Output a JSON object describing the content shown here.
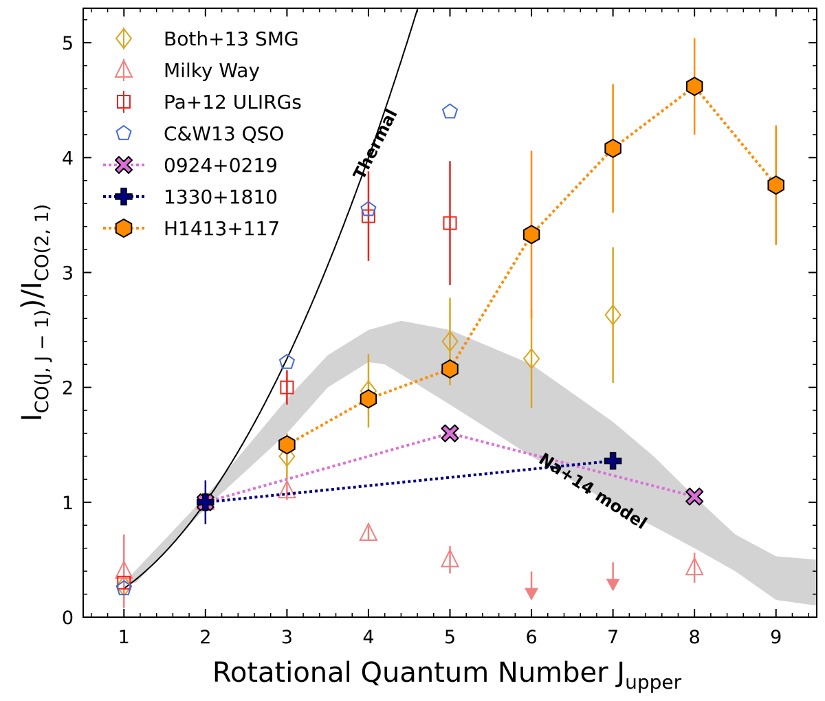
{
  "chart_data": {
    "type": "scatter",
    "xlabel": "Rotational Quantum Number J",
    "xlabel_sub": "upper",
    "ylabel_main": "I",
    "ylabel_sub1": "CO(J, J − 1)",
    "ylabel_mid": ")/I",
    "ylabel_sub2": "CO(2, 1)",
    "xlim": [
      0.5,
      9.5
    ],
    "ylim": [
      0,
      5.3
    ],
    "xticks": [
      1,
      2,
      3,
      4,
      5,
      6,
      7,
      8,
      9
    ],
    "yticks": [
      0,
      1,
      2,
      3,
      4,
      5
    ],
    "legend_position": "top-left",
    "annotations": [
      "Thermal",
      "Na+14 model"
    ],
    "series": [
      {
        "name": "Both+13 SMG",
        "marker": "diamond",
        "color": "#DAA520",
        "line": false,
        "points": [
          {
            "x": 1,
            "y": 0.27,
            "err": 0.0
          },
          {
            "x": 2,
            "y": 1.0,
            "err": 0.0
          },
          {
            "x": 3,
            "y": 1.4,
            "err": 0.2
          },
          {
            "x": 4,
            "y": 1.97,
            "err": 0.32
          },
          {
            "x": 5,
            "y": 2.4,
            "err": 0.38
          },
          {
            "x": 6,
            "y": 2.25,
            "err": 0.43
          },
          {
            "x": 7,
            "y": 2.63,
            "err": 0.59
          }
        ]
      },
      {
        "name": "Milky Way",
        "marker": "triangle",
        "color": "#F08080",
        "line": false,
        "points": [
          {
            "x": 1,
            "y": 0.4,
            "err": 0.32
          },
          {
            "x": 2,
            "y": 1.0,
            "err": 0.05
          },
          {
            "x": 3,
            "y": 1.1,
            "err": 0.08
          },
          {
            "x": 4,
            "y": 0.73,
            "err": 0.06
          },
          {
            "x": 5,
            "y": 0.5,
            "err": 0.12
          },
          {
            "x": 8,
            "y": 0.43,
            "err": 0.13
          }
        ],
        "upper_limits": [
          {
            "x": 6,
            "y": 0.17
          },
          {
            "x": 7,
            "y": 0.25
          }
        ]
      },
      {
        "name": "Pa+12 ULIRGs",
        "marker": "square",
        "color": "#E8251F",
        "line": false,
        "points": [
          {
            "x": 1,
            "y": 0.3,
            "err": 0.0
          },
          {
            "x": 3,
            "y": 2.0,
            "err": 0.15
          },
          {
            "x": 4,
            "y": 3.49,
            "err": 0.39
          },
          {
            "x": 5,
            "y": 3.43,
            "err": 0.54
          }
        ]
      },
      {
        "name": "C&W13 QSO",
        "marker": "pentagon",
        "color": "#4169E1",
        "line": false,
        "points": [
          {
            "x": 1,
            "y": 0.25,
            "err": 0.0
          },
          {
            "x": 3,
            "y": 2.22,
            "err": 0.0
          },
          {
            "x": 4,
            "y": 3.55,
            "err": 0.0
          },
          {
            "x": 5,
            "y": 4.4,
            "err": 0.0
          }
        ]
      },
      {
        "name": "0924+0219",
        "marker": "x",
        "color": "#DA70D6",
        "line": true,
        "points": [
          {
            "x": 2,
            "y": 1.0,
            "err": 0.0
          },
          {
            "x": 5,
            "y": 1.6,
            "err": 0.0
          },
          {
            "x": 8,
            "y": 1.05,
            "err": 0.0
          }
        ]
      },
      {
        "name": "1330+1810",
        "marker": "plus",
        "color": "#000080",
        "line": true,
        "points": [
          {
            "x": 2,
            "y": 1.0,
            "err": 0.19
          },
          {
            "x": 7,
            "y": 1.36,
            "err": 0.0
          }
        ]
      },
      {
        "name": "H1413+117",
        "marker": "hexagon",
        "color": "#FF8C00",
        "line": true,
        "points": [
          {
            "x": 3,
            "y": 1.5,
            "err": 0.0
          },
          {
            "x": 4,
            "y": 1.9,
            "err": 0.0
          },
          {
            "x": 5,
            "y": 2.16,
            "err": 0.0
          },
          {
            "x": 6,
            "y": 3.33,
            "err": 0.73
          },
          {
            "x": 7,
            "y": 4.08,
            "err": 0.56
          },
          {
            "x": 8,
            "y": 4.62,
            "err": 0.42
          },
          {
            "x": 9,
            "y": 3.76,
            "err": 0.52
          }
        ]
      }
    ],
    "thermal_curve": "y = J^2 / 4",
    "model_band": {
      "upper": [
        [
          1,
          0.3
        ],
        [
          2,
          1.05
        ],
        [
          3,
          1.9
        ],
        [
          3.5,
          2.28
        ],
        [
          4,
          2.5
        ],
        [
          4.4,
          2.58
        ],
        [
          5,
          2.5
        ],
        [
          6,
          2.2
        ],
        [
          7,
          1.7
        ],
        [
          7.5,
          1.4
        ],
        [
          8,
          1.05
        ],
        [
          8.5,
          0.72
        ],
        [
          9,
          0.53
        ],
        [
          9.5,
          0.5
        ]
      ],
      "lower": [
        [
          1.15,
          0.3
        ],
        [
          2,
          0.95
        ],
        [
          3,
          1.6
        ],
        [
          3.5,
          2.0
        ],
        [
          4,
          2.22
        ],
        [
          4.2,
          2.2
        ],
        [
          5,
          1.85
        ],
        [
          6,
          1.4
        ],
        [
          7,
          0.98
        ],
        [
          8,
          0.6
        ],
        [
          8.5,
          0.4
        ],
        [
          9,
          0.15
        ],
        [
          9.5,
          0.1
        ]
      ]
    }
  }
}
